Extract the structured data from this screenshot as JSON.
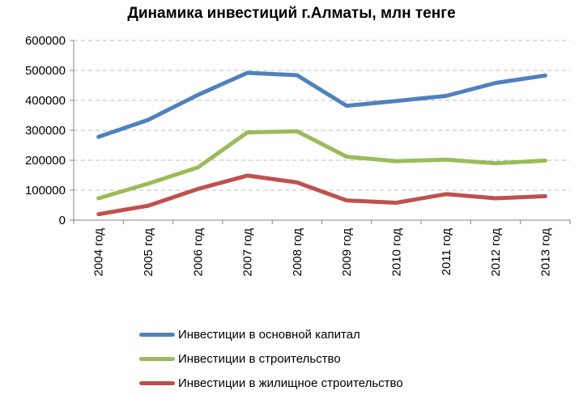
{
  "chart_data": {
    "type": "line",
    "title": "Динамика инвестиций  г.Алматы, млн тенге",
    "xlabel": "",
    "ylabel": "",
    "categories": [
      "2004 год",
      "2005 год",
      "2006 год",
      "2007 год",
      "2008 год",
      "2009 год",
      "2010 год",
      "2011 год",
      "2012 год",
      "2013 год"
    ],
    "ylim": [
      0,
      600000
    ],
    "yticks": [
      "0",
      "100000",
      "200000",
      "300000",
      "400000",
      "500000",
      "600000"
    ],
    "grid": "horizontal dashed",
    "legend_position": "bottom",
    "series": [
      {
        "name": "Инвестиции в основной капитал",
        "color": "#4F81BD",
        "values": [
          278000,
          335000,
          418000,
          492000,
          484000,
          382000,
          398000,
          415000,
          458000,
          483000
        ]
      },
      {
        "name": "Инвестиции в строительство",
        "color": "#9BBB59",
        "values": [
          73000,
          122000,
          176000,
          293000,
          297000,
          212000,
          197000,
          202000,
          190000,
          199000
        ]
      },
      {
        "name": "Инвестиции в жилищное строительство",
        "color": "#C0504D",
        "values": [
          20000,
          48000,
          104000,
          149000,
          126000,
          66000,
          58000,
          87000,
          73000,
          80000
        ]
      }
    ]
  }
}
